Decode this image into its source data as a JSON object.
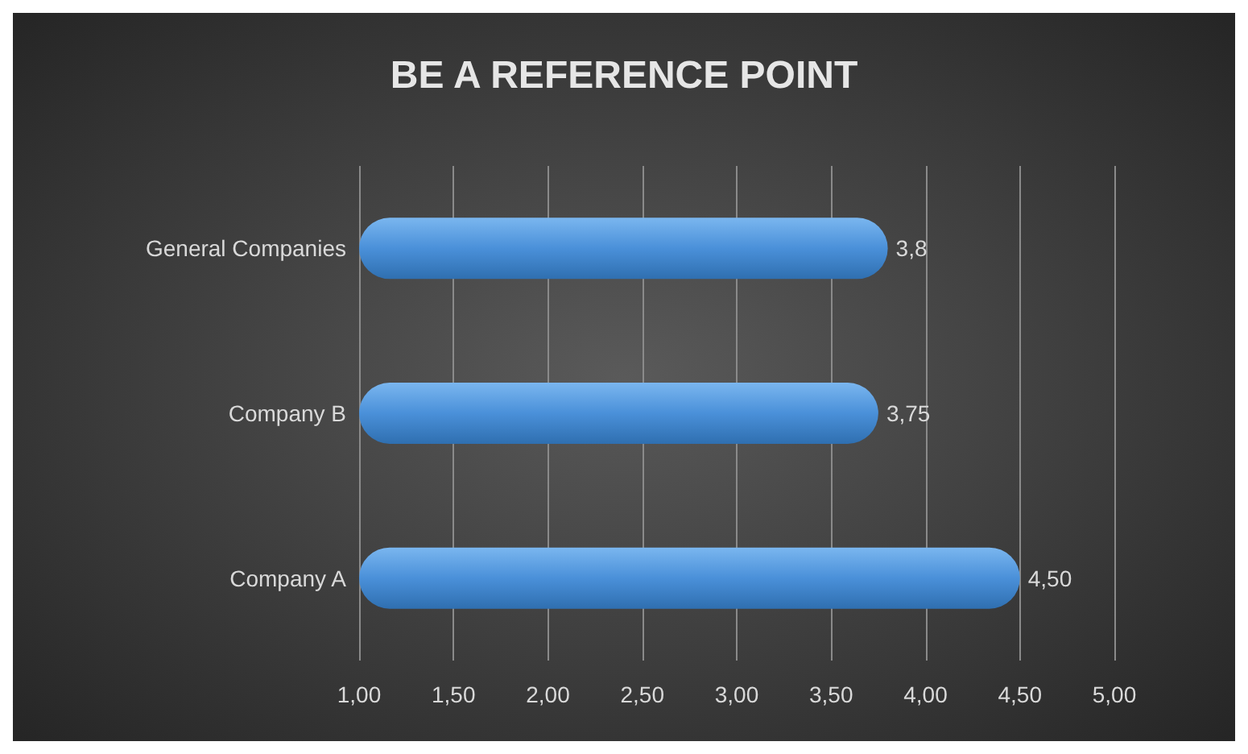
{
  "chart_data": {
    "type": "bar",
    "title": "BE A REFERENCE POINT",
    "orientation": "horizontal",
    "categories": [
      "General Companies",
      "Company B",
      "Company A"
    ],
    "values": [
      3.8,
      3.75,
      4.5
    ],
    "color": "#4a90d9",
    "value_labels": [
      "3,8",
      "3,75",
      "4,50"
    ],
    "xlim": [
      1,
      5
    ],
    "xticks": [
      {
        "value": 1,
        "label": "1,00"
      },
      {
        "value": 1.5,
        "label": "1,50"
      },
      {
        "value": 2,
        "label": "2,00"
      },
      {
        "value": 2.5,
        "label": "2,50"
      },
      {
        "value": 3,
        "label": "3,00"
      },
      {
        "value": 3.5,
        "label": "3,50"
      },
      {
        "value": 4,
        "label": "4,00"
      },
      {
        "value": 4.5,
        "label": "4,50"
      },
      {
        "value": 5,
        "label": "5,00"
      }
    ],
    "grid": "x"
  }
}
